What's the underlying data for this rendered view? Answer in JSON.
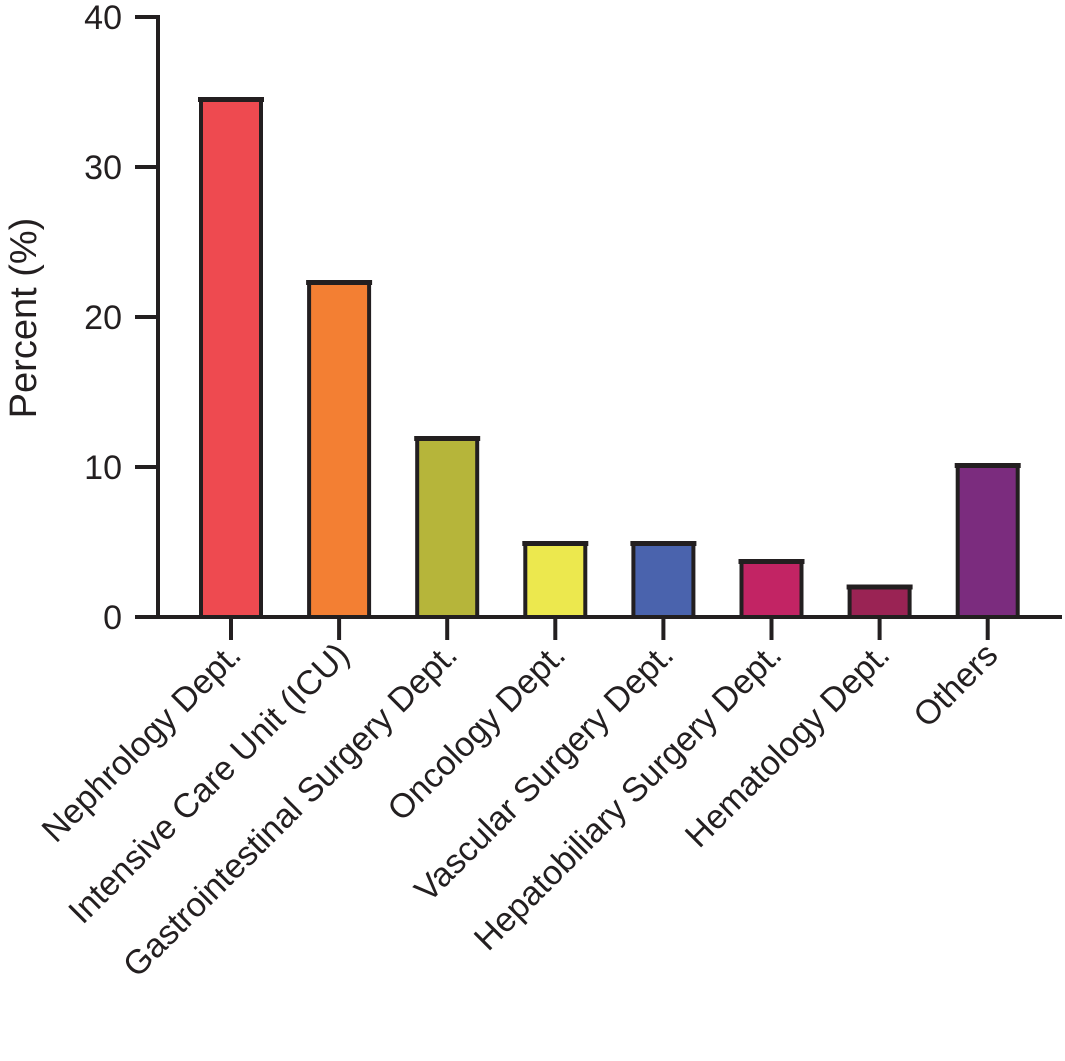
{
  "chart_data": {
    "type": "bar",
    "title": "",
    "xlabel": "",
    "ylabel": "Percent (%)",
    "ylim": [
      0,
      40
    ],
    "yticks": [
      0,
      10,
      20,
      30,
      40
    ],
    "grid": false,
    "legend": null,
    "categories": [
      "Nephrology Dept.",
      "Intensive Care Unit (ICU)",
      "Gastrointestinal Surgery Dept.",
      "Oncology Dept.",
      "Vascular Surgery Dept.",
      "Hepatobiliary Surgery Dept.",
      "Hematology Dept.",
      "Others"
    ],
    "values": [
      34.5,
      22.3,
      11.9,
      4.9,
      4.9,
      3.7,
      2.0,
      10.1
    ],
    "colors": [
      "#ee4a50",
      "#f37f33",
      "#b6b53a",
      "#ece84e",
      "#4a63ad",
      "#c22464",
      "#9a2354",
      "#7b2c7e"
    ]
  },
  "axis": {
    "y_tick_labels": [
      "0",
      "10",
      "20",
      "30",
      "40"
    ],
    "y_title": "Percent (%)"
  }
}
